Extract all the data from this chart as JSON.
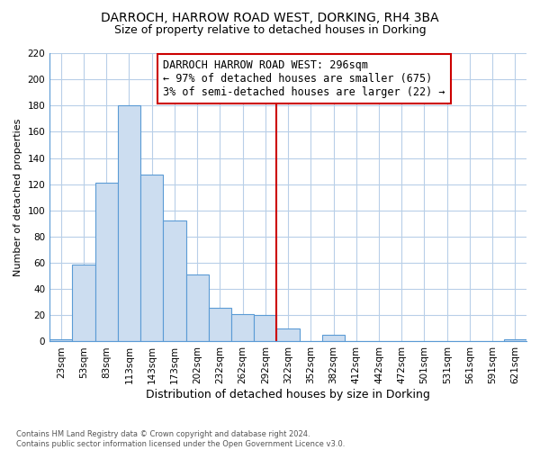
{
  "title": "DARROCH, HARROW ROAD WEST, DORKING, RH4 3BA",
  "subtitle": "Size of property relative to detached houses in Dorking",
  "xlabel": "Distribution of detached houses by size in Dorking",
  "ylabel": "Number of detached properties",
  "footer_line1": "Contains HM Land Registry data © Crown copyright and database right 2024.",
  "footer_line2": "Contains public sector information licensed under the Open Government Licence v3.0.",
  "categories": [
    "23sqm",
    "53sqm",
    "83sqm",
    "113sqm",
    "143sqm",
    "173sqm",
    "202sqm",
    "232sqm",
    "262sqm",
    "292sqm",
    "322sqm",
    "352sqm",
    "382sqm",
    "412sqm",
    "442sqm",
    "472sqm",
    "501sqm",
    "531sqm",
    "561sqm",
    "591sqm",
    "621sqm"
  ],
  "values": [
    2,
    59,
    121,
    180,
    127,
    92,
    51,
    26,
    21,
    20,
    10,
    0,
    5,
    0,
    0,
    0,
    0,
    0,
    0,
    0,
    2
  ],
  "bar_fill_color": "#ccddf0",
  "bar_edge_color": "#5b9bd5",
  "highlight_index": 9,
  "highlight_line_color": "#cc0000",
  "annotation_box_color": "#cc0000",
  "annotation_text": "DARROCH HARROW ROAD WEST: 296sqm\n← 97% of detached houses are smaller (675)\n3% of semi-detached houses are larger (22) →",
  "annotation_fontsize": 8.5,
  "ylim": [
    0,
    220
  ],
  "yticks": [
    0,
    20,
    40,
    60,
    80,
    100,
    120,
    140,
    160,
    180,
    200,
    220
  ],
  "background_color": "#ffffff",
  "plot_background_color": "#ffffff",
  "grid_color": "#b8cfe8",
  "title_fontsize": 10,
  "subtitle_fontsize": 9,
  "xlabel_fontsize": 9,
  "ylabel_fontsize": 8,
  "tick_fontsize": 7.5
}
